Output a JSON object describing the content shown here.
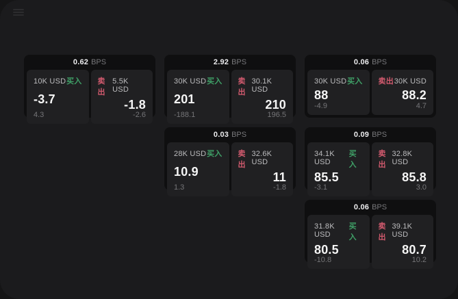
{
  "app": {
    "background": "#151516",
    "surface_color": "#1b1b1d"
  },
  "colors": {
    "card_bg": "#0f0f10",
    "panel_bg": "#202022",
    "buy_green": "#3fa067",
    "sell_red": "#d25a6e",
    "value_text": "#f5f5f5",
    "sub_text": "#757578",
    "amount_text": "#bcbcbe"
  },
  "labels": {
    "bps_unit": "BPS",
    "buy": "买入",
    "sell": "卖出"
  },
  "cards": [
    {
      "bps": "0.62",
      "buy": {
        "amount": "10K USD",
        "value": "-3.7",
        "sub": "4.3"
      },
      "sell": {
        "amount": "5.5K USD",
        "value": "-1.8",
        "sub": "-2.6"
      }
    },
    {
      "bps": "2.92",
      "buy": {
        "amount": "30K USD",
        "value": "201",
        "sub": "-188.1"
      },
      "sell": {
        "amount": "30.1K USD",
        "value": "210",
        "sub": "196.5"
      }
    },
    {
      "bps": "0.06",
      "buy": {
        "amount": "30K USD",
        "value": "88",
        "sub": "-4.9"
      },
      "sell": {
        "amount": "30K USD",
        "value": "88.2",
        "sub": "4.7"
      }
    },
    {
      "bps": "0.03",
      "buy": {
        "amount": "28K USD",
        "value": "10.9",
        "sub": "1.3"
      },
      "sell": {
        "amount": "32.6K USD",
        "value": "11",
        "sub": "-1.8"
      }
    },
    {
      "bps": "0.09",
      "buy": {
        "amount": "34.1K USD",
        "value": "85.5",
        "sub": "-3.1"
      },
      "sell": {
        "amount": "32.8K USD",
        "value": "85.8",
        "sub": "3.0"
      }
    },
    {
      "bps": "0.06",
      "buy": {
        "amount": "31.8K USD",
        "value": "80.5",
        "sub": "-10.8"
      },
      "sell": {
        "amount": "39.1K USD",
        "value": "80.7",
        "sub": "10.2"
      }
    }
  ]
}
